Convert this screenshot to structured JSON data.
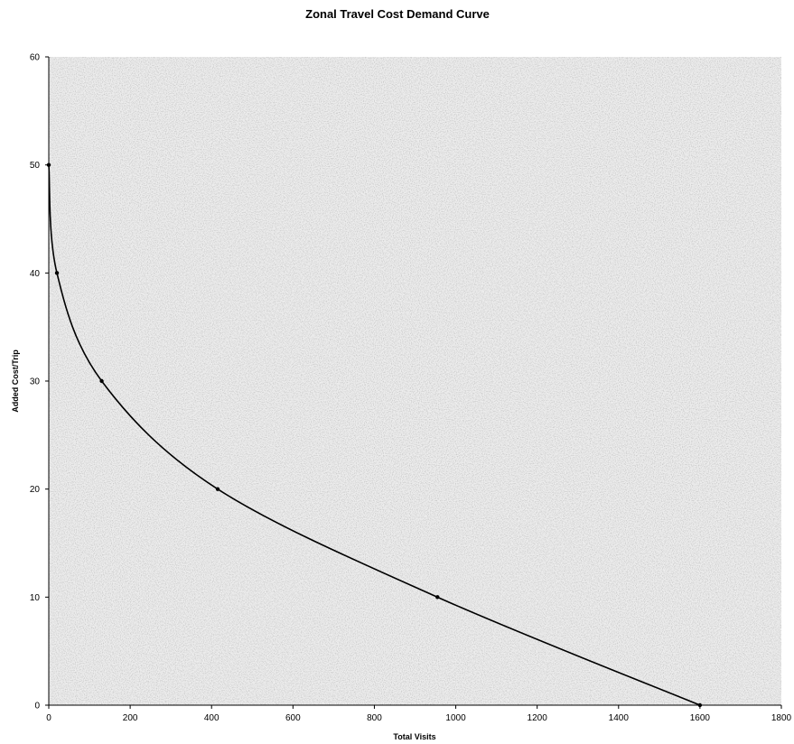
{
  "chart_data": {
    "type": "line",
    "title": "Zonal Travel Cost Demand Curve",
    "xlabel": "Total Visits",
    "ylabel": "Added Cost/Trip",
    "xlim": [
      0,
      1800
    ],
    "ylim": [
      0,
      60
    ],
    "xticks": [
      0,
      200,
      400,
      600,
      800,
      1000,
      1200,
      1400,
      1600,
      1800
    ],
    "yticks": [
      0,
      10,
      20,
      30,
      40,
      50,
      60
    ],
    "grid": false,
    "legend": "none",
    "series": [
      {
        "x": [
          0,
          20,
          130,
          415,
          955,
          1600
        ],
        "y": [
          50,
          40,
          30,
          20,
          10,
          0
        ],
        "markers": true,
        "smooth": true
      }
    ],
    "colors": {
      "plot_background": "#e6e6e6",
      "line": "#000000",
      "axis": "#000000"
    }
  }
}
